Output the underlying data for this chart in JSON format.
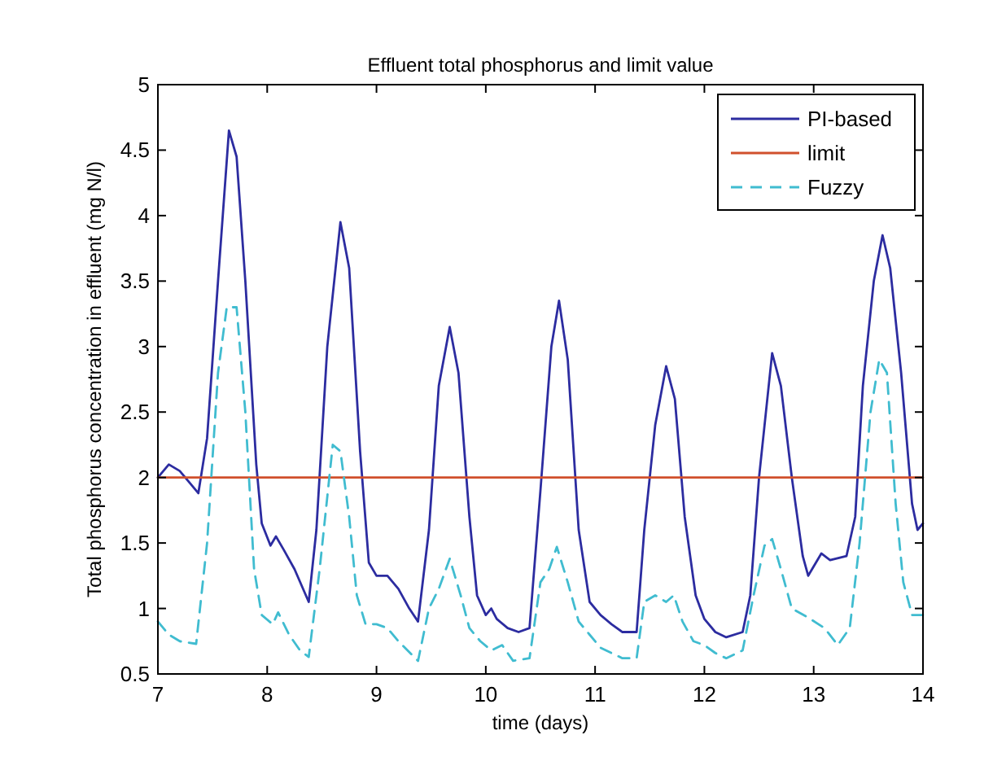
{
  "chart_data": {
    "type": "line",
    "title": "Effluent total phosphorus and limit value",
    "xlabel": "time (days)",
    "ylabel": "Total phosphorus concentration in effluent (mg N/l)",
    "xlim": [
      7,
      14
    ],
    "xticks": [
      7,
      8,
      9,
      10,
      11,
      12,
      13,
      14
    ],
    "ylim": [
      0.5,
      5
    ],
    "yticks": [
      0.5,
      1,
      1.5,
      2,
      2.5,
      3,
      3.5,
      4,
      4.5,
      5
    ],
    "grid": false,
    "legend": "top right",
    "marker": "none",
    "series": [
      {
        "name": "PI-based",
        "color": "#2c2ca0",
        "line_style": "solid",
        "x": [
          7.0,
          7.1,
          7.2,
          7.3,
          7.37,
          7.45,
          7.55,
          7.65,
          7.72,
          7.8,
          7.9,
          7.95,
          8.03,
          8.08,
          8.15,
          8.25,
          8.38,
          8.45,
          8.55,
          8.67,
          8.75,
          8.85,
          8.93,
          9.0,
          9.1,
          9.2,
          9.3,
          9.38,
          9.48,
          9.57,
          9.67,
          9.75,
          9.85,
          9.92,
          10.0,
          10.05,
          10.1,
          10.2,
          10.3,
          10.4,
          10.5,
          10.6,
          10.67,
          10.75,
          10.85,
          10.95,
          11.05,
          11.15,
          11.25,
          11.38,
          11.45,
          11.55,
          11.65,
          11.73,
          11.82,
          11.92,
          12.0,
          12.1,
          12.2,
          12.35,
          12.42,
          12.5,
          12.62,
          12.7,
          12.8,
          12.9,
          12.95,
          13.07,
          13.15,
          13.3,
          13.38,
          13.45,
          13.55,
          13.63,
          13.7,
          13.8,
          13.9,
          13.95,
          14.0
        ],
        "values": [
          2.0,
          2.1,
          2.05,
          1.95,
          1.88,
          2.3,
          3.5,
          4.65,
          4.45,
          3.5,
          2.1,
          1.65,
          1.48,
          1.55,
          1.45,
          1.3,
          1.05,
          1.6,
          3.0,
          3.95,
          3.6,
          2.2,
          1.35,
          1.25,
          1.25,
          1.15,
          1.0,
          0.9,
          1.6,
          2.7,
          3.15,
          2.8,
          1.7,
          1.1,
          0.95,
          1.0,
          0.92,
          0.85,
          0.82,
          0.85,
          1.9,
          3.0,
          3.35,
          2.9,
          1.6,
          1.05,
          0.95,
          0.88,
          0.82,
          0.82,
          1.6,
          2.4,
          2.85,
          2.6,
          1.7,
          1.1,
          0.92,
          0.82,
          0.78,
          0.82,
          1.1,
          2.0,
          2.95,
          2.7,
          2.0,
          1.4,
          1.25,
          1.42,
          1.37,
          1.4,
          1.7,
          2.7,
          3.5,
          3.85,
          3.6,
          2.8,
          1.8,
          1.6,
          1.65
        ]
      },
      {
        "name": "limit",
        "color": "#d0502c",
        "line_style": "solid",
        "x": [
          7,
          14
        ],
        "values": [
          2,
          2
        ]
      },
      {
        "name": "Fuzzy",
        "color": "#40bcd0",
        "line_style": "dashed",
        "x": [
          7.0,
          7.1,
          7.2,
          7.35,
          7.45,
          7.55,
          7.63,
          7.72,
          7.8,
          7.88,
          7.95,
          8.05,
          8.1,
          8.2,
          8.3,
          8.38,
          8.48,
          8.6,
          8.67,
          8.75,
          8.82,
          8.9,
          9.0,
          9.1,
          9.2,
          9.38,
          9.48,
          9.57,
          9.67,
          9.77,
          9.85,
          9.95,
          10.05,
          10.15,
          10.25,
          10.4,
          10.5,
          10.58,
          10.65,
          10.75,
          10.85,
          10.95,
          11.05,
          11.15,
          11.25,
          11.38,
          11.45,
          11.55,
          11.65,
          11.72,
          11.8,
          11.9,
          12.0,
          12.1,
          12.2,
          12.35,
          12.45,
          12.55,
          12.62,
          12.7,
          12.8,
          12.95,
          13.1,
          13.22,
          13.33,
          13.42,
          13.52,
          13.6,
          13.67,
          13.75,
          13.82,
          13.9,
          14.0
        ],
        "values": [
          0.9,
          0.8,
          0.75,
          0.73,
          1.5,
          2.8,
          3.3,
          3.3,
          2.5,
          1.3,
          0.95,
          0.88,
          0.97,
          0.8,
          0.68,
          0.63,
          1.3,
          2.25,
          2.2,
          1.7,
          1.1,
          0.88,
          0.88,
          0.85,
          0.75,
          0.6,
          1.0,
          1.15,
          1.38,
          1.1,
          0.85,
          0.75,
          0.68,
          0.72,
          0.6,
          0.62,
          1.2,
          1.3,
          1.47,
          1.2,
          0.9,
          0.8,
          0.7,
          0.66,
          0.62,
          0.62,
          1.05,
          1.1,
          1.05,
          1.1,
          0.9,
          0.75,
          0.72,
          0.66,
          0.62,
          0.68,
          1.1,
          1.48,
          1.53,
          1.3,
          1.0,
          0.93,
          0.85,
          0.72,
          0.85,
          1.5,
          2.5,
          2.9,
          2.8,
          1.8,
          1.2,
          0.95,
          0.95
        ]
      }
    ]
  }
}
